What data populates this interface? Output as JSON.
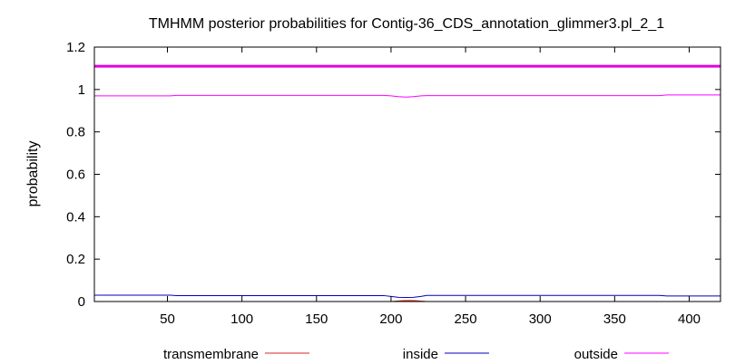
{
  "chart_data": {
    "type": "line",
    "title": "TMHMM posterior probabilities for Contig-36_CDS_annotation_glimmer3.pl_2_1",
    "xlabel": "",
    "ylabel": "probability",
    "xlim": [
      1,
      421
    ],
    "ylim": [
      0,
      1.2
    ],
    "xticks": [
      50,
      100,
      150,
      200,
      250,
      300,
      350,
      400
    ],
    "yticks": [
      0,
      0.2,
      0.4,
      0.6,
      0.8,
      1,
      1.2
    ],
    "ytick_labels": [
      "0",
      "0.2",
      "0.4",
      "0.6",
      "0.8",
      "1",
      "1.2"
    ],
    "grid": false,
    "legend_position": "bottom",
    "topology_band": {
      "y": 1.11,
      "color": "#e000e0",
      "state": "outside"
    },
    "series": [
      {
        "name": "transmembrane",
        "color": "#d62728",
        "x": [
          1,
          200,
          204,
          208,
          212,
          216,
          220,
          224,
          421
        ],
        "y": [
          0,
          0,
          0.002,
          0.004,
          0.005,
          0.004,
          0.002,
          0,
          0
        ]
      },
      {
        "name": "inside",
        "color": "#0000c0",
        "x": [
          1,
          52,
          56,
          195,
          200,
          205,
          210,
          215,
          220,
          224,
          380,
          385,
          421
        ],
        "y": [
          0.03,
          0.03,
          0.028,
          0.028,
          0.024,
          0.02,
          0.019,
          0.02,
          0.024,
          0.029,
          0.029,
          0.026,
          0.026
        ]
      },
      {
        "name": "outside",
        "color": "#ff00ff",
        "x": [
          1,
          52,
          56,
          195,
          200,
          205,
          210,
          215,
          220,
          224,
          380,
          385,
          421
        ],
        "y": [
          0.97,
          0.97,
          0.972,
          0.972,
          0.97,
          0.966,
          0.964,
          0.966,
          0.97,
          0.971,
          0.971,
          0.974,
          0.974
        ]
      }
    ]
  }
}
